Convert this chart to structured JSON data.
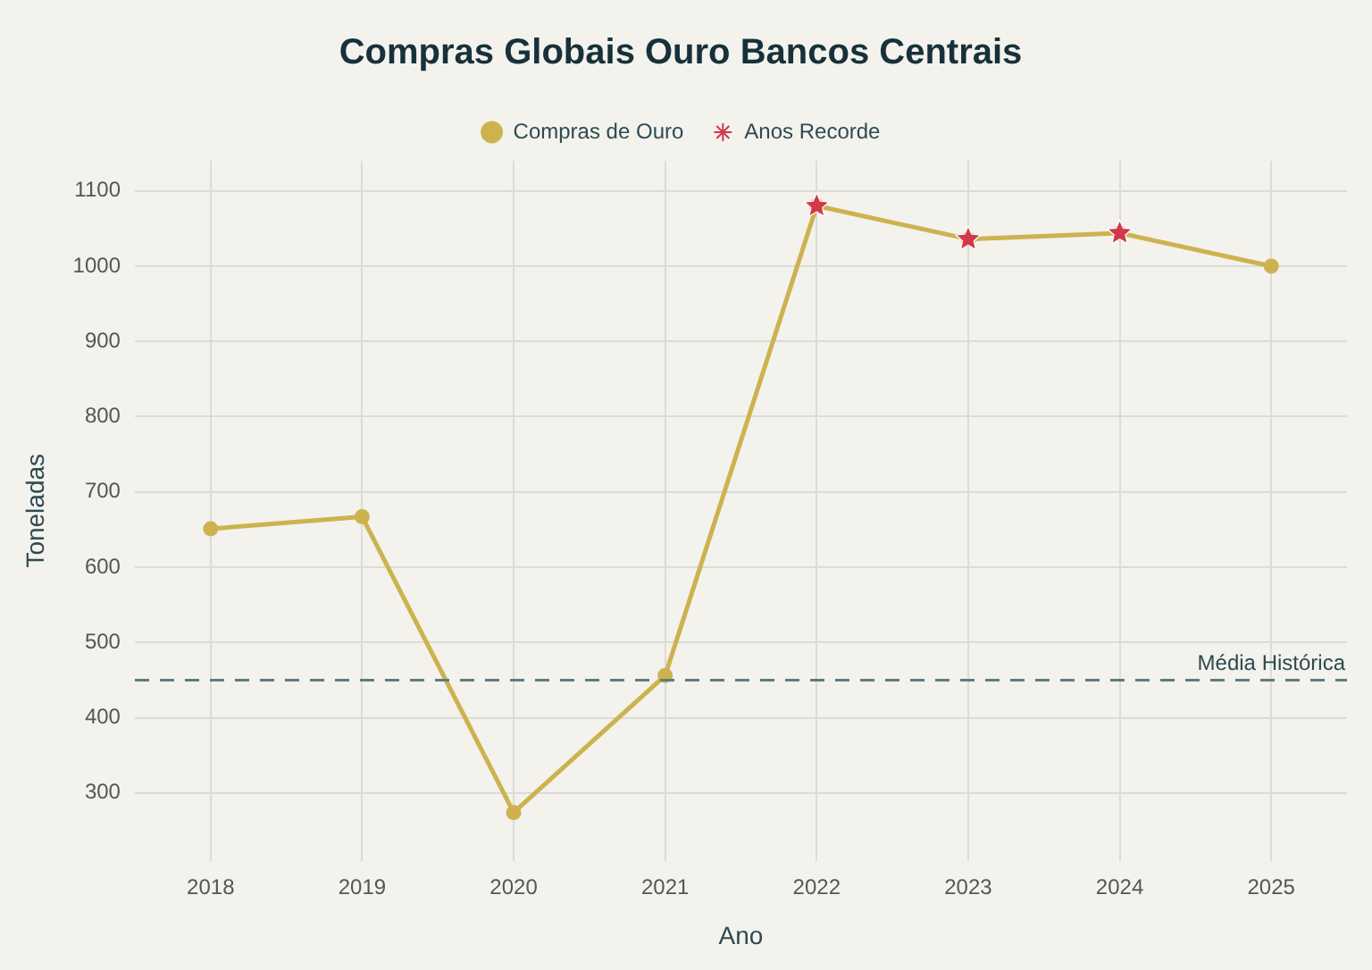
{
  "chart_data": {
    "type": "line",
    "title": "Compras Globais Ouro Bancos Centrais",
    "xlabel": "Ano",
    "ylabel": "Toneladas",
    "categories": [
      "2018",
      "2019",
      "2020",
      "2021",
      "2022",
      "2023",
      "2024",
      "2025"
    ],
    "series": [
      {
        "name": "Compras de Ouro",
        "color": "#cdb24f",
        "marker": "circle",
        "line_style": "solid",
        "values": [
          651,
          667,
          274,
          456,
          1080,
          1036,
          1044,
          1000
        ]
      },
      {
        "name": "Anos Recorde",
        "type": "scatter",
        "color": "#d1394b",
        "marker": "star",
        "values": [
          null,
          null,
          null,
          null,
          1080,
          1036,
          1044,
          null
        ]
      }
    ],
    "ylim": [
      210,
      1140
    ],
    "yticks": [
      300,
      400,
      500,
      600,
      700,
      800,
      900,
      1000,
      1100
    ],
    "ref_lines": [
      {
        "axis": "y",
        "value": 450,
        "label": "Média Histórica",
        "color": "#5f7c80",
        "line_style": "dashed"
      }
    ],
    "grid": true,
    "legend": "top"
  }
}
